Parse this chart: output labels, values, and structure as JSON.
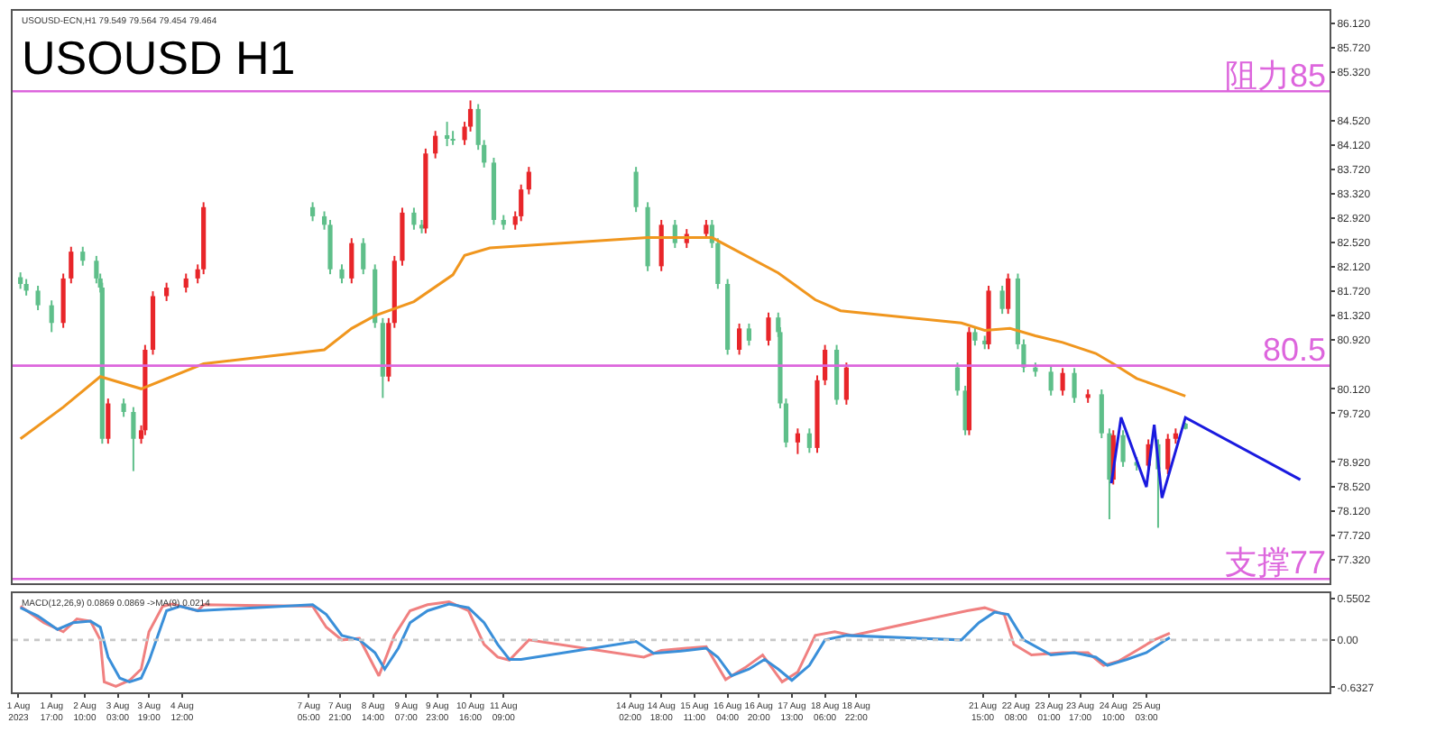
{
  "chart_data": [
    {
      "type": "candlestick",
      "title": "USOUSD H1",
      "annotations": [
        "USOUSD-ECN,H1 79.549 79.564 79.454 79.464"
      ],
      "x": [
        "2023-08-01T01:00",
        "2023-08-01T04:00",
        "2023-08-01T10:00",
        "2023-08-01T17:00",
        "2023-08-01T23:00",
        "2023-08-02T03:00",
        "2023-08-02T09:00",
        "2023-08-02T16:00",
        "2023-08-02T18:00",
        "2023-08-02T19:00",
        "2023-08-02T22:00",
        "2023-08-03T06:00",
        "2023-08-03T11:00",
        "2023-08-03T15:00",
        "2023-08-03T17:00",
        "2023-08-03T21:00",
        "2023-08-04T04:00",
        "2023-08-04T14:00",
        "2023-08-04T20:00",
        "2023-08-04T23:00",
        "2023-08-07T07:00",
        "2023-08-07T13:00",
        "2023-08-07T16:00",
        "2023-08-07T22:00",
        "2023-08-08T03:00",
        "2023-08-08T09:00",
        "2023-08-08T15:00",
        "2023-08-08T19:00",
        "2023-08-08T22:00",
        "2023-08-09T01:00",
        "2023-08-09T05:00",
        "2023-08-09T11:00",
        "2023-08-09T15:00",
        "2023-08-09T17:00",
        "2023-08-09T22:00",
        "2023-08-10T04:00",
        "2023-08-10T07:00",
        "2023-08-10T13:00",
        "2023-08-10T16:00",
        "2023-08-10T20:00",
        "2023-08-10T23:00",
        "2023-08-11T04:00",
        "2023-08-11T09:00",
        "2023-08-11T15:00",
        "2023-08-11T18:00",
        "2023-08-11T22:00",
        "2023-08-14T05:00",
        "2023-08-14T11:00",
        "2023-08-14T18:00",
        "2023-08-15T01:00",
        "2023-08-15T07:00",
        "2023-08-15T17:00",
        "2023-08-15T20:00",
        "2023-08-15T23:00",
        "2023-08-16T04:00",
        "2023-08-16T10:00",
        "2023-08-16T15:00",
        "2023-08-17T01:00",
        "2023-08-17T06:00",
        "2023-08-17T07:00",
        "2023-08-17T10:00",
        "2023-08-17T16:00",
        "2023-08-17T22:00",
        "2023-08-18T02:00",
        "2023-08-18T06:00",
        "2023-08-18T12:00",
        "2023-08-18T17:00",
        "2023-08-21T02:00",
        "2023-08-21T06:00",
        "2023-08-21T08:00",
        "2023-08-21T11:00",
        "2023-08-21T16:00",
        "2023-08-21T18:00",
        "2023-08-22T01:00",
        "2023-08-22T04:00",
        "2023-08-22T09:00",
        "2023-08-22T12:00",
        "2023-08-22T18:00",
        "2023-08-23T02:00",
        "2023-08-23T08:00",
        "2023-08-23T14:00",
        "2023-08-23T21:00",
        "2023-08-24T04:00",
        "2023-08-24T08:00",
        "2023-08-24T10:00",
        "2023-08-24T15:00",
        "2023-08-24T22:00",
        "2023-08-25T04:00",
        "2023-08-25T09:00",
        "2023-08-25T14:00",
        "2023-08-25T18:00",
        "2023-08-25T23:00"
      ],
      "ohlc": [
        [
          81.95,
          82.03,
          81.76,
          81.84
        ],
        [
          81.84,
          81.92,
          81.65,
          81.73
        ],
        [
          81.73,
          81.81,
          81.41,
          81.49
        ],
        [
          81.49,
          81.57,
          81.05,
          81.2
        ],
        [
          81.2,
          82.01,
          81.12,
          81.93
        ],
        [
          81.93,
          82.45,
          81.85,
          82.37
        ],
        [
          82.37,
          82.45,
          82.14,
          82.22
        ],
        [
          82.22,
          82.3,
          81.85,
          81.93
        ],
        [
          81.93,
          82.01,
          81.7,
          81.78
        ],
        [
          81.78,
          81.86,
          79.22,
          79.3
        ],
        [
          79.3,
          79.96,
          79.22,
          79.88
        ],
        [
          79.88,
          79.96,
          79.66,
          79.74
        ],
        [
          79.74,
          79.82,
          78.77,
          79.3
        ],
        [
          79.3,
          79.52,
          79.22,
          79.44
        ],
        [
          79.44,
          80.84,
          79.36,
          80.76
        ],
        [
          80.76,
          81.72,
          80.68,
          81.64
        ],
        [
          81.64,
          81.86,
          81.56,
          81.78
        ],
        [
          81.78,
          82.01,
          81.7,
          81.93
        ],
        [
          81.93,
          82.16,
          81.85,
          82.08
        ],
        [
          82.08,
          83.18,
          82.0,
          83.1
        ],
        [
          83.1,
          83.18,
          82.87,
          82.95
        ],
        [
          82.95,
          83.03,
          82.73,
          82.81
        ],
        [
          82.81,
          82.89,
          82.0,
          82.08
        ],
        [
          82.08,
          82.16,
          81.85,
          81.93
        ],
        [
          81.93,
          82.59,
          81.85,
          82.51
        ],
        [
          82.51,
          82.59,
          82.0,
          82.08
        ],
        [
          82.08,
          82.16,
          81.12,
          81.2
        ],
        [
          81.2,
          81.28,
          79.97,
          80.32
        ],
        [
          80.32,
          81.28,
          80.24,
          81.2
        ],
        [
          81.2,
          82.3,
          81.12,
          82.22
        ],
        [
          82.22,
          83.09,
          82.14,
          83.01
        ],
        [
          83.01,
          83.09,
          82.73,
          82.81
        ],
        [
          82.81,
          82.89,
          82.67,
          82.75
        ],
        [
          82.75,
          84.06,
          82.67,
          83.98
        ],
        [
          83.98,
          84.35,
          83.9,
          84.27
        ],
        [
          84.27,
          84.5,
          84.1,
          84.22
        ],
        [
          84.22,
          84.35,
          84.12,
          84.2
        ],
        [
          84.2,
          84.5,
          84.12,
          84.42
        ],
        [
          84.42,
          84.85,
          84.34,
          84.71
        ],
        [
          84.71,
          84.79,
          84.04,
          84.12
        ],
        [
          84.12,
          84.2,
          83.75,
          83.83
        ],
        [
          83.83,
          83.91,
          82.81,
          82.89
        ],
        [
          82.89,
          82.97,
          82.73,
          82.81
        ],
        [
          82.81,
          83.03,
          82.73,
          82.95
        ],
        [
          82.95,
          83.47,
          82.87,
          83.39
        ],
        [
          83.39,
          83.76,
          83.31,
          83.68
        ],
        [
          83.68,
          83.76,
          83.02,
          83.1
        ],
        [
          83.1,
          83.18,
          82.05,
          82.13
        ],
        [
          82.13,
          82.89,
          82.05,
          82.81
        ],
        [
          82.81,
          82.89,
          82.43,
          82.51
        ],
        [
          82.51,
          82.74,
          82.43,
          82.66
        ],
        [
          82.66,
          82.89,
          82.58,
          82.81
        ],
        [
          82.81,
          82.89,
          82.43,
          82.51
        ],
        [
          82.51,
          82.59,
          81.76,
          81.84
        ],
        [
          81.84,
          81.92,
          80.68,
          80.76
        ],
        [
          80.76,
          81.19,
          80.68,
          81.11
        ],
        [
          81.11,
          81.19,
          80.83,
          80.91
        ],
        [
          80.91,
          81.37,
          80.83,
          81.29
        ],
        [
          81.29,
          81.37,
          80.97,
          81.05
        ],
        [
          81.05,
          81.13,
          79.8,
          79.88
        ],
        [
          79.88,
          79.96,
          79.16,
          79.24
        ],
        [
          79.24,
          79.47,
          79.05,
          79.39
        ],
        [
          79.39,
          79.47,
          79.07,
          79.15
        ],
        [
          79.15,
          80.34,
          79.07,
          80.26
        ],
        [
          80.26,
          80.84,
          80.18,
          80.76
        ],
        [
          80.76,
          80.84,
          79.86,
          79.94
        ],
        [
          79.94,
          80.55,
          79.86,
          80.47
        ],
        [
          80.47,
          80.55,
          80.01,
          80.09
        ],
        [
          80.09,
          80.17,
          79.36,
          79.44
        ],
        [
          79.44,
          81.13,
          79.36,
          81.05
        ],
        [
          81.05,
          81.13,
          80.83,
          80.91
        ],
        [
          80.91,
          80.99,
          80.77,
          80.85
        ],
        [
          80.85,
          81.81,
          80.77,
          81.73
        ],
        [
          81.73,
          81.81,
          81.35,
          81.43
        ],
        [
          81.43,
          82.01,
          81.35,
          81.93
        ],
        [
          81.93,
          82.01,
          80.77,
          80.85
        ],
        [
          80.85,
          80.93,
          80.39,
          80.47
        ],
        [
          80.47,
          80.55,
          80.32,
          80.4
        ],
        [
          80.4,
          80.48,
          80.01,
          80.09
        ],
        [
          80.09,
          80.46,
          80.01,
          80.38
        ],
        [
          80.38,
          80.46,
          79.89,
          79.97
        ],
        [
          79.97,
          80.11,
          79.89,
          80.03
        ],
        [
          80.03,
          80.11,
          79.31,
          79.39
        ],
        [
          79.39,
          79.47,
          77.98,
          78.63
        ],
        [
          78.63,
          79.44,
          78.55,
          79.36
        ],
        [
          79.36,
          79.44,
          78.84,
          78.92
        ],
        [
          78.92,
          79.0,
          78.78,
          78.86
        ],
        [
          78.86,
          79.29,
          78.78,
          79.21
        ],
        [
          79.21,
          79.29,
          77.84,
          78.8
        ],
        [
          78.8,
          79.38,
          78.72,
          79.3
        ],
        [
          79.3,
          79.47,
          79.22,
          79.39
        ],
        [
          79.549,
          79.564,
          79.454,
          79.464
        ]
      ],
      "colors": [
        "#5fbf8a",
        "#5fbf8a",
        "#5fbf8a",
        "#5fbf8a",
        "#e8262a",
        "#e8262a",
        "#5fbf8a",
        "#5fbf8a",
        "#5fbf8a",
        "#5fbf8a",
        "#e8262a",
        "#5fbf8a",
        "#5fbf8a",
        "#e8262a",
        "#e8262a",
        "#e8262a",
        "#e8262a",
        "#e8262a",
        "#e8262a",
        "#e8262a",
        "#5fbf8a",
        "#5fbf8a",
        "#5fbf8a",
        "#5fbf8a",
        "#e8262a",
        "#5fbf8a",
        "#5fbf8a",
        "#5fbf8a",
        "#e8262a",
        "#e8262a",
        "#e8262a",
        "#5fbf8a",
        "#5fbf8a",
        "#e8262a",
        "#e8262a",
        "#5fbf8a",
        "#5fbf8a",
        "#e8262a",
        "#e8262a",
        "#5fbf8a",
        "#5fbf8a",
        "#5fbf8a",
        "#5fbf8a",
        "#e8262a",
        "#e8262a",
        "#e8262a",
        "#5fbf8a",
        "#5fbf8a",
        "#e8262a",
        "#5fbf8a",
        "#e8262a",
        "#e8262a",
        "#5fbf8a",
        "#5fbf8a",
        "#5fbf8a",
        "#e8262a",
        "#5fbf8a",
        "#e8262a",
        "#5fbf8a",
        "#5fbf8a",
        "#5fbf8a",
        "#e8262a",
        "#5fbf8a",
        "#e8262a",
        "#e8262a",
        "#5fbf8a",
        "#e8262a",
        "#5fbf8a",
        "#5fbf8a",
        "#e8262a",
        "#5fbf8a",
        "#5fbf8a",
        "#e8262a",
        "#5fbf8a",
        "#e8262a",
        "#5fbf8a",
        "#5fbf8a",
        "#5fbf8a",
        "#5fbf8a",
        "#e8262a",
        "#5fbf8a",
        "#e8262a",
        "#5fbf8a",
        "#5fbf8a",
        "#e8262a",
        "#5fbf8a",
        "#5fbf8a",
        "#e8262a",
        "#5fbf8a",
        "#e8262a",
        "#e8262a",
        "#5fbf8a"
      ],
      "series": [
        {
          "type": "line",
          "color": "#f0961e",
          "x": [
            "2023-08-01T01:00",
            "2023-08-01T23:00",
            "2023-08-02T18:00",
            "2023-08-03T15:00",
            "2023-08-04T23:00",
            "2023-08-07T13:00",
            "2023-08-08T03:00",
            "2023-08-08T15:00",
            "2023-08-09T11:00",
            "2023-08-10T07:00",
            "2023-08-10T13:00",
            "2023-08-11T02:00",
            "2023-08-14T11:00",
            "2023-08-15T20:00",
            "2023-08-17T06:00",
            "2023-08-18T01:00",
            "2023-08-18T14:00",
            "2023-08-21T04:00",
            "2023-08-21T16:00",
            "2023-08-22T05:00",
            "2023-08-22T18:00",
            "2023-08-23T08:00",
            "2023-08-24T01:00",
            "2023-08-24T10:00",
            "2023-08-24T22:00",
            "2023-08-25T13:00",
            "2023-08-25T23:00"
          ],
          "values": [
            79.3,
            79.82,
            80.32,
            80.12,
            80.53,
            80.76,
            81.11,
            81.32,
            81.55,
            81.99,
            82.31,
            82.43,
            82.6,
            82.6,
            82.02,
            81.58,
            81.4,
            81.2,
            81.08,
            81.11,
            80.99,
            80.88,
            80.7,
            80.53,
            80.29,
            80.12,
            80.0
          ]
        },
        {
          "type": "line",
          "color": "#1a1adf",
          "x": [
            "2023-08-24T09:00",
            "2023-08-24T14:00",
            "2023-08-25T03:00",
            "2023-08-25T07:00",
            "2023-08-25T11:00",
            "2023-08-25T23:00",
            "2023-08-28T10:00"
          ],
          "values": [
            78.57,
            79.65,
            78.51,
            79.53,
            78.33,
            79.65,
            78.63
          ]
        }
      ],
      "ref_lines": [
        {
          "axis": "y",
          "value": 85,
          "label": "阻力85",
          "color": "#dd66dd"
        },
        {
          "axis": "y",
          "value": 80.5,
          "label": "80.5",
          "color": "#dd66dd"
        },
        {
          "axis": "y",
          "value": 77,
          "label": "支撑77",
          "color": "#dd66dd"
        }
      ],
      "xlim": [
        "2023-07-31T21:00",
        "2023-08-29T01:00"
      ],
      "ylim": [
        76.93,
        86.32
      ],
      "yticks": [
        {
          "value": 86.12,
          "label": "86.120"
        },
        {
          "value": 85.72,
          "label": "85.720"
        },
        {
          "value": 85.32,
          "label": "85.320"
        },
        {
          "value": 84.52,
          "label": "84.520"
        },
        {
          "value": 84.12,
          "label": "84.120"
        },
        {
          "value": 83.72,
          "label": "83.720"
        },
        {
          "value": 83.32,
          "label": "83.320"
        },
        {
          "value": 82.92,
          "label": "82.920"
        },
        {
          "value": 82.52,
          "label": "82.520"
        },
        {
          "value": 82.12,
          "label": "82.120"
        },
        {
          "value": 81.72,
          "label": "81.720"
        },
        {
          "value": 81.32,
          "label": "81.320"
        },
        {
          "value": 80.92,
          "label": "80.920"
        },
        {
          "value": 80.12,
          "label": "80.120"
        },
        {
          "value": 79.72,
          "label": "79.720"
        },
        {
          "value": 78.92,
          "label": "78.920"
        },
        {
          "value": 78.52,
          "label": "78.520"
        },
        {
          "value": 78.12,
          "label": "78.120"
        },
        {
          "value": 77.72,
          "label": "77.720"
        },
        {
          "value": 77.32,
          "label": "77.320"
        }
      ],
      "tick_labels": "y"
    },
    {
      "type": "line",
      "annotations": [
        "MACD(12,26,9) 0.0869 0.0869 ->MA(9) 0.0214"
      ],
      "series": [
        {
          "color": "#f08080",
          "x": [
            "2023-08-01T01:00",
            "2023-08-01T13:00",
            "2023-08-01T23:00",
            "2023-08-02T06:00",
            "2023-08-02T13:00",
            "2023-08-02T18:00",
            "2023-08-02T20:00",
            "2023-08-03T02:00",
            "2023-08-03T09:00",
            "2023-08-03T15:00",
            "2023-08-03T19:00",
            "2023-08-04T02:00",
            "2023-08-04T07:00",
            "2023-08-04T20:00",
            "2023-08-04T23:00",
            "2023-08-07T07:00",
            "2023-08-07T14:00",
            "2023-08-07T22:00",
            "2023-08-08T07:00",
            "2023-08-08T17:00",
            "2023-08-09T01:00",
            "2023-08-09T09:00",
            "2023-08-09T18:00",
            "2023-08-10T05:00",
            "2023-08-10T15:00",
            "2023-08-10T23:00",
            "2023-08-11T06:00",
            "2023-08-11T12:00",
            "2023-08-11T22:00",
            "2023-08-14T09:00",
            "2023-08-14T18:00",
            "2023-08-15T07:00",
            "2023-08-15T17:00",
            "2023-08-16T03:00",
            "2023-08-16T13:00",
            "2023-08-16T22:00",
            "2023-08-17T08:00",
            "2023-08-17T16:00",
            "2023-08-18T01:00",
            "2023-08-18T11:00",
            "2023-08-18T20:00",
            "2023-08-21T07:00",
            "2023-08-21T16:00",
            "2023-08-22T02:00",
            "2023-08-22T07:00",
            "2023-08-22T16:00",
            "2023-08-23T08:00",
            "2023-08-23T21:00",
            "2023-08-24T05:00",
            "2023-08-24T13:00",
            "2023-08-24T22:00",
            "2023-08-25T07:00",
            "2023-08-25T15:00"
          ],
          "values": [
            0.45,
            0.23,
            0.11,
            0.28,
            0.25,
            0.0,
            -0.56,
            -0.62,
            -0.54,
            -0.39,
            0.11,
            0.45,
            0.48,
            0.39,
            0.47,
            0.45,
            0.17,
            0.0,
            0.02,
            -0.48,
            0.06,
            0.39,
            0.47,
            0.51,
            0.39,
            -0.06,
            -0.23,
            -0.27,
            0.0,
            -0.23,
            -0.14,
            -0.11,
            -0.09,
            -0.53,
            -0.37,
            -0.2,
            -0.56,
            -0.43,
            0.06,
            0.11,
            0.06,
            0.39,
            0.43,
            0.34,
            -0.06,
            -0.2,
            -0.17,
            -0.17,
            -0.34,
            -0.28,
            -0.14,
            0.0,
            0.09
          ]
        },
        {
          "color": "#3a8fd9",
          "x": [
            "2023-08-01T01:00",
            "2023-08-01T10:00",
            "2023-08-01T20:00",
            "2023-08-02T04:00",
            "2023-08-02T13:00",
            "2023-08-02T18:00",
            "2023-08-02T22:00",
            "2023-08-03T04:00",
            "2023-08-03T09:00",
            "2023-08-03T15:00",
            "2023-08-03T19:00",
            "2023-08-04T04:00",
            "2023-08-04T11:00",
            "2023-08-04T20:00",
            "2023-08-07T07:00",
            "2023-08-07T14:00",
            "2023-08-07T22:00",
            "2023-08-08T07:00",
            "2023-08-08T15:00",
            "2023-08-08T20:00",
            "2023-08-09T03:00",
            "2023-08-09T09:00",
            "2023-08-09T18:00",
            "2023-08-10T05:00",
            "2023-08-10T15:00",
            "2023-08-10T23:00",
            "2023-08-11T06:00",
            "2023-08-11T12:00",
            "2023-08-11T18:00",
            "2023-08-14T05:00",
            "2023-08-14T14:00",
            "2023-08-15T04:00",
            "2023-08-15T17:00",
            "2023-08-15T23:00",
            "2023-08-16T06:00",
            "2023-08-16T15:00",
            "2023-08-16T23:00",
            "2023-08-17T06:00",
            "2023-08-17T13:00",
            "2023-08-17T22:00",
            "2023-08-18T06:00",
            "2023-08-18T17:00",
            "2023-08-21T04:00",
            "2023-08-21T13:00",
            "2023-08-21T21:00",
            "2023-08-22T04:00",
            "2023-08-22T12:00",
            "2023-08-23T02:00",
            "2023-08-23T14:00",
            "2023-08-24T01:00",
            "2023-08-24T07:00",
            "2023-08-24T17:00",
            "2023-08-25T03:00",
            "2023-08-25T13:00",
            "2023-08-25T15:00"
          ],
          "values": [
            0.43,
            0.32,
            0.14,
            0.23,
            0.25,
            0.17,
            -0.23,
            -0.51,
            -0.56,
            -0.51,
            -0.28,
            0.39,
            0.45,
            0.39,
            0.47,
            0.34,
            0.06,
            0.0,
            -0.17,
            -0.39,
            -0.11,
            0.23,
            0.39,
            0.48,
            0.43,
            0.23,
            -0.06,
            -0.26,
            -0.26,
            -0.02,
            -0.18,
            -0.15,
            -0.11,
            -0.23,
            -0.48,
            -0.39,
            -0.26,
            -0.39,
            -0.54,
            -0.34,
            0.0,
            0.06,
            0.0,
            0.23,
            0.37,
            0.34,
            0.0,
            -0.2,
            -0.17,
            -0.23,
            -0.34,
            -0.26,
            -0.17,
            0.0,
            0.03
          ]
        }
      ],
      "ref_lines": [
        {
          "axis": "y",
          "value": 0,
          "color": "#c8c8c8",
          "line_style": "dotted"
        }
      ],
      "xlim": [
        "2023-07-31T21:00",
        "2023-08-29T01:00"
      ],
      "xticks": [
        {
          "value": "2023-08-01",
          "label": "1 Aug 2023"
        },
        {
          "value": "2023-08-01T17:00",
          "label": "1 Aug 17:00"
        },
        {
          "value": "2023-08-02T10:00",
          "label": "2 Aug 10:00"
        },
        {
          "value": "2023-08-03T03:00",
          "label": "3 Aug 03:00"
        },
        {
          "value": "2023-08-03T19:00",
          "label": "3 Aug 19:00"
        },
        {
          "value": "2023-08-04T12:00",
          "label": "4 Aug 12:00"
        },
        {
          "value": "2023-08-07T05:00",
          "label": "7 Aug 05:00"
        },
        {
          "value": "2023-08-07T21:00",
          "label": "7 Aug 21:00"
        },
        {
          "value": "2023-08-08T14:00",
          "label": "8 Aug 14:00"
        },
        {
          "value": "2023-08-09T07:00",
          "label": "9 Aug 07:00"
        },
        {
          "value": "2023-08-09T23:00",
          "label": "9 Aug 23:00"
        },
        {
          "value": "2023-08-10T16:00",
          "label": "10 Aug 16:00"
        },
        {
          "value": "2023-08-11T09:00",
          "label": "11 Aug 09:00"
        },
        {
          "value": "2023-08-14T02:00",
          "label": "14 Aug 02:00"
        },
        {
          "value": "2023-08-14T18:00",
          "label": "14 Aug 18:00"
        },
        {
          "value": "2023-08-15T11:00",
          "label": "15 Aug 11:00"
        },
        {
          "value": "2023-08-16T04:00",
          "label": "16 Aug 04:00"
        },
        {
          "value": "2023-08-16T20:00",
          "label": "16 Aug 20:00"
        },
        {
          "value": "2023-08-17T13:00",
          "label": "17 Aug 13:00"
        },
        {
          "value": "2023-08-18T06:00",
          "label": "18 Aug 06:00"
        },
        {
          "value": "2023-08-18T22:00",
          "label": "18 Aug 22:00"
        },
        {
          "value": "2023-08-21T15:00",
          "label": "21 Aug 15:00"
        },
        {
          "value": "2023-08-22T08:00",
          "label": "22 Aug 08:00"
        },
        {
          "value": "2023-08-23T01:00",
          "label": "23 Aug 01:00"
        },
        {
          "value": "2023-08-23T17:00",
          "label": "23 Aug 17:00"
        },
        {
          "value": "2023-08-24T10:00",
          "label": "24 Aug 10:00"
        },
        {
          "value": "2023-08-25T03:00",
          "label": "25 Aug 03:00"
        }
      ],
      "ylim": [
        -0.7,
        0.62
      ],
      "yticks": [
        0.5502,
        {
          "value": 0,
          "label": "0.00"
        },
        {
          "value": -0.6327,
          "label": "-0.6327"
        }
      ]
    }
  ]
}
